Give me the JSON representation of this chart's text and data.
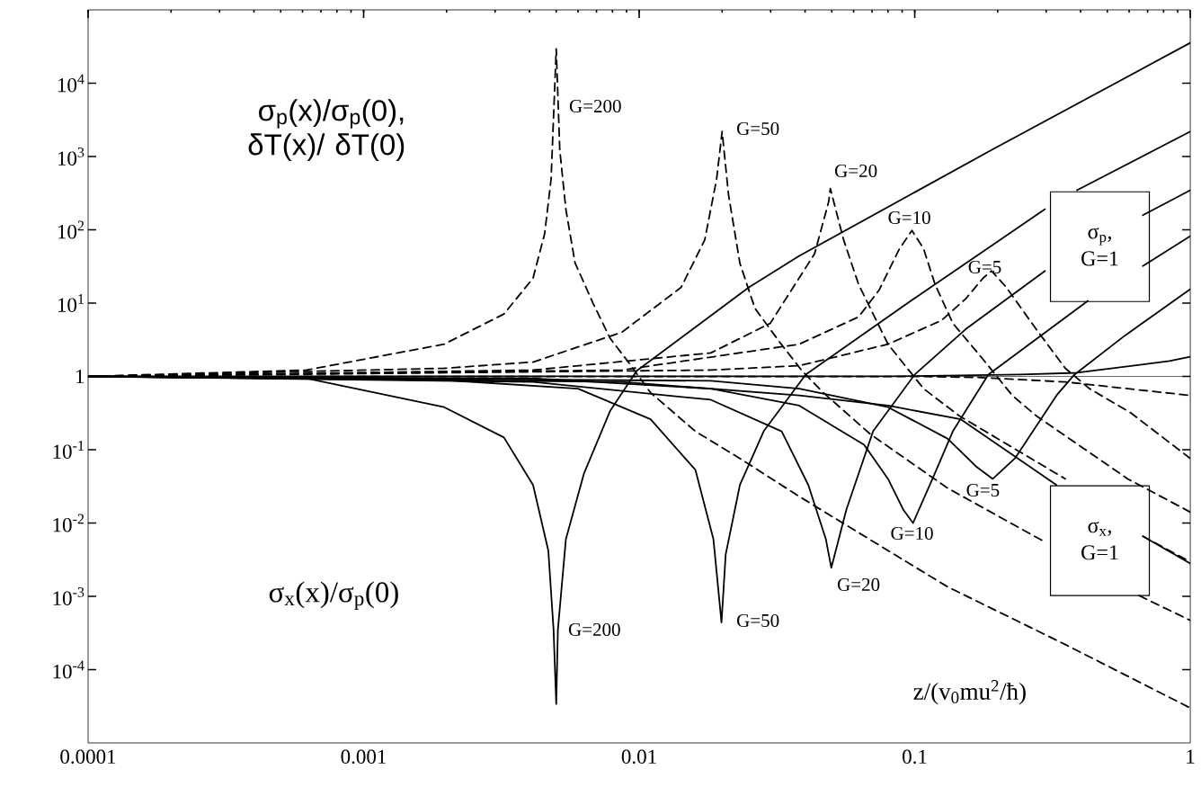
{
  "chart_data": {
    "type": "line",
    "log": "xy",
    "xlabel": "z/(v$_{0}$mu$^{2}$/ħ)",
    "xlim": [
      0.0001,
      1
    ],
    "ylim": [
      1e-05,
      100000
    ],
    "xticks": [
      0.0001,
      0.001,
      0.01,
      0.1,
      1
    ],
    "yticks": [
      {
        "value": 0.0001,
        "label": "10$^{-4}$"
      },
      {
        "value": 0.001,
        "label": "10$^{-3}$"
      },
      {
        "value": 0.01,
        "label": "10$^{-2}$"
      },
      {
        "value": 0.1,
        "label": "10$^{-1}$"
      },
      1,
      {
        "value": 10,
        "label": "10$^{1}$"
      },
      {
        "value": 100,
        "label": "10$^{2}$"
      },
      {
        "value": 1000,
        "label": "10$^{3}$"
      },
      {
        "value": 10000,
        "label": "10$^{4}$"
      }
    ],
    "ref_lines": [
      {
        "axis": "y",
        "value": 1
      }
    ],
    "series": [
      {
        "color": "#000000",
        "line_style": "dashed",
        "x": [
          0.0001,
          0.00062,
          0.00196,
          0.00323,
          0.00412,
          0.00454,
          0.00479,
          0.005,
          0.00515,
          0.00542,
          0.00585,
          0.00678,
          0.00785,
          0.00912,
          0.011,
          0.016,
          0.0232,
          0.0381,
          0.1315,
          0.352,
          1
        ],
        "values": [
          1,
          1.22,
          2.75,
          7.1,
          21.9,
          89,
          490,
          29500,
          1230,
          190,
          35.5,
          10.2,
          3.3,
          1.58,
          0.6,
          0.178,
          0.076,
          0.023,
          0.00135,
          0.00022,
          3e-05
        ]
      },
      {
        "color": "#000000",
        "line_style": "solid",
        "x": [
          0.0001,
          0.00062,
          0.00196,
          0.00323,
          0.00412,
          0.00468,
          0.00489,
          0.005,
          0.00507,
          0.00542,
          0.0063,
          0.00785,
          0.0098,
          0.025,
          0.0381,
          0.19,
          1
        ],
        "values": [
          1,
          0.94,
          0.38,
          0.147,
          0.033,
          0.0042,
          0.00035,
          3.4e-05,
          0.00035,
          0.006,
          0.047,
          0.34,
          1.19,
          16.4,
          44,
          1230,
          35500
        ]
      },
      {
        "color": "#000000",
        "line_style": "dashed",
        "x": [
          0.0001,
          0.00196,
          0.00412,
          0.00865,
          0.0142,
          0.0173,
          0.0191,
          0.02,
          0.0211,
          0.0232,
          0.0263,
          0.0322,
          0.039,
          0.0466,
          0.069,
          0.1315,
          0.297,
          0.4,
          0.653,
          1
        ],
        "values": [
          1,
          1.29,
          1.57,
          4,
          16.4,
          73,
          490,
          2190,
          300,
          35,
          8.5,
          3,
          1.19,
          0.6,
          0.163,
          0.03,
          0.0055,
          null,
          0.00102,
          0.00047
        ]
      },
      {
        "color": "#000000",
        "line_style": "solid",
        "x": [
          0.0001,
          0.00196,
          0.006,
          0.011,
          0.016,
          0.0186,
          0.0199,
          0.0206,
          0.0232,
          0.0283,
          0.0402,
          0.102,
          0.297,
          0.35,
          0.388,
          1
        ],
        "values": [
          1,
          0.89,
          0.68,
          0.26,
          0.053,
          0.006,
          0.00044,
          0.0037,
          0.033,
          0.178,
          1.06,
          12.3,
          191,
          null,
          347,
          2190
        ]
      },
      {
        "color": "#000000",
        "line_style": "dashed",
        "x": [
          0.0001,
          0.00412,
          0.0182,
          0.0299,
          0.0433,
          0.0487,
          0.0494,
          0.0552,
          0.0626,
          0.08,
          0.1077,
          0.145,
          0.352,
          0.5,
          0.673,
          1
        ],
        "values": [
          1,
          1.22,
          2.09,
          5.3,
          47,
          240,
          365,
          73,
          17.9,
          2.75,
          0.68,
          0.29,
          0.04,
          null,
          0.0066,
          0.00295
        ]
      },
      {
        "color": "#000000",
        "line_style": "solid",
        "x": [
          0.0001,
          0.00412,
          0.0182,
          0.0329,
          0.0411,
          0.0476,
          0.0498,
          0.0565,
          0.0706,
          0.1,
          0.153,
          0.297,
          0.45,
          0.673,
          1
        ],
        "values": [
          1,
          0.84,
          0.48,
          0.178,
          0.033,
          0.006,
          0.00245,
          0.0153,
          0.178,
          1.06,
          4.4,
          27.5,
          null,
          158,
          347
        ]
      },
      {
        "color": "#000000",
        "line_style": "dashed",
        "x": [
          0.0001,
          0.00865,
          0.0381,
          0.0626,
          0.0743,
          0.088,
          0.0977,
          0.1077,
          0.1186,
          0.1375,
          0.177,
          0.226,
          0.276,
          0.593,
          1
        ],
        "values": [
          1,
          1.22,
          2.75,
          6.5,
          15.1,
          55,
          98,
          55,
          17.9,
          5.3,
          1.71,
          0.55,
          0.29,
          0.04,
          0.0141
        ]
      },
      {
        "color": "#000000",
        "line_style": "solid",
        "x": [
          0.0001,
          0.00412,
          0.0182,
          0.0381,
          0.0655,
          0.08,
          0.0908,
          0.0986,
          0.116,
          0.1375,
          0.185,
          0.425,
          0.55,
          0.673,
          1
        ],
        "values": [
          1,
          0.94,
          0.68,
          0.4,
          0.117,
          0.04,
          0.0153,
          0.01,
          0.04,
          0.178,
          1.06,
          10.7,
          null,
          32,
          82
        ]
      },
      {
        "color": "#000000",
        "line_style": "dashed",
        "x": [
          0.0001,
          0.0182,
          0.0381,
          0.08,
          0.125,
          0.153,
          0.177,
          0.19,
          0.215,
          0.276,
          0.352,
          0.431,
          0.607,
          1
        ],
        "values": [
          1,
          1.22,
          1.4,
          2.75,
          5.8,
          11.4,
          21.9,
          27.5,
          16.4,
          4.4,
          1.29,
          0.68,
          0.32,
          0.076
        ]
      },
      {
        "color": "#000000",
        "line_style": "solid",
        "x": [
          0.0001,
          0.0182,
          0.0381,
          0.08,
          0.1315,
          0.168,
          0.192,
          0.231,
          0.327,
          0.38,
          0.579,
          1
        ],
        "values": [
          1,
          0.87,
          0.68,
          0.38,
          0.142,
          0.058,
          0.04,
          0.076,
          0.55,
          1.06,
          3.6,
          15.5
        ]
      },
      {
        "color": "#000000",
        "line_style": "solid",
        "x": [
          0.0001,
          0.00865,
          0.0381,
          0.08,
          0.147,
          0.327,
          0.45,
          0.673,
          1
        ],
        "values": [
          1,
          0.84,
          0.55,
          0.4,
          0.26,
          0.033,
          null,
          0.0066,
          0.0028
        ]
      },
      {
        "color": "#000000",
        "line_style": "solid",
        "x": [
          0.0001,
          0.08,
          0.243,
          0.388,
          0.84,
          1
        ],
        "values": [
          1,
          1,
          1.06,
          1.12,
          1.62,
          1.86
        ]
      },
      {
        "color": "#000000",
        "line_style": "dashed",
        "x": [
          0.0001,
          0.1,
          0.168,
          0.352,
          1
        ],
        "values": [
          1,
          1,
          0.97,
          0.84,
          0.55
        ]
      }
    ],
    "annotations": [
      "σ$_{p}$(x)/σ$_{p}$(0), δT(x)/ δT(0)",
      "σ$_{x}$(x)/σ$_{p}$(0)",
      "σ$_{p}$, G=1",
      "σ$_{x}$, G=1",
      "G=200",
      "G=50",
      "G=20",
      "G=10",
      "G=5",
      "G=200",
      "G=50",
      "G=20",
      "G=10",
      "G=5"
    ]
  }
}
